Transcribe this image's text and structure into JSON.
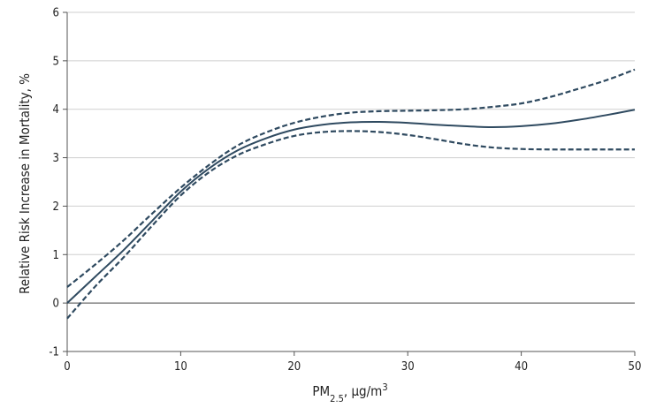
{
  "chart_data": {
    "type": "line",
    "xlabel": {
      "base": "PM",
      "sub": "2.5",
      "rest": ", µg/m",
      "sup": "3"
    },
    "ylabel": "Relative Risk Increase in Mortality, %",
    "xlim": [
      0,
      50
    ],
    "ylim": [
      -1,
      6
    ],
    "x_ticks": [
      "0",
      "10",
      "20",
      "30",
      "40",
      "50"
    ],
    "y_ticks": [
      "-1",
      "0",
      "1",
      "2",
      "3",
      "4",
      "5",
      "6"
    ],
    "grid": "horizontal",
    "colors": {
      "line": "#2f4a60",
      "grid": "#cfcfcf",
      "axis": "#555555",
      "zero": "#444444"
    },
    "series": [
      {
        "role": "estimate",
        "style": "solid",
        "x": [
          0,
          2.5,
          5,
          7.5,
          10,
          12.5,
          15,
          17.5,
          20,
          22.5,
          25,
          27.5,
          30,
          32.5,
          35,
          37.5,
          40,
          42.5,
          45,
          47.5,
          50
        ],
        "y": [
          0.0,
          0.55,
          1.1,
          1.7,
          2.3,
          2.78,
          3.15,
          3.4,
          3.58,
          3.68,
          3.73,
          3.74,
          3.72,
          3.68,
          3.65,
          3.63,
          3.65,
          3.7,
          3.78,
          3.88,
          3.99
        ]
      },
      {
        "role": "upper-ci",
        "style": "dashed",
        "x": [
          0,
          2.5,
          5,
          7.5,
          10,
          12.5,
          15,
          17.5,
          20,
          22.5,
          25,
          27.5,
          30,
          32.5,
          35,
          37.5,
          40,
          42.5,
          45,
          47.5,
          50
        ],
        "y": [
          0.33,
          0.8,
          1.3,
          1.85,
          2.38,
          2.85,
          3.25,
          3.52,
          3.72,
          3.85,
          3.93,
          3.96,
          3.97,
          3.98,
          4.0,
          4.05,
          4.12,
          4.25,
          4.42,
          4.6,
          4.82
        ]
      },
      {
        "role": "lower-ci",
        "style": "dashed",
        "x": [
          0,
          2.5,
          5,
          7.5,
          10,
          12.5,
          15,
          17.5,
          20,
          22.5,
          25,
          27.5,
          30,
          32.5,
          35,
          37.5,
          40,
          42.5,
          45,
          47.5,
          50
        ],
        "y": [
          -0.32,
          0.35,
          0.95,
          1.6,
          2.22,
          2.7,
          3.05,
          3.28,
          3.45,
          3.53,
          3.55,
          3.53,
          3.47,
          3.38,
          3.28,
          3.21,
          3.18,
          3.17,
          3.17,
          3.17,
          3.17
        ]
      }
    ]
  }
}
